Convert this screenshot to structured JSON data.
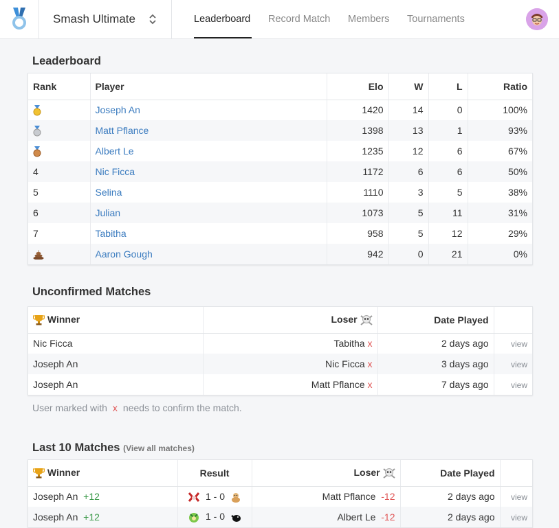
{
  "header": {
    "game": "Smash Ultimate",
    "tabs": [
      "Leaderboard",
      "Record Match",
      "Members",
      "Tournaments"
    ],
    "active_tab": "Leaderboard"
  },
  "leaderboard": {
    "title": "Leaderboard",
    "columns": [
      "Rank",
      "Player",
      "Elo",
      "W",
      "L",
      "Ratio"
    ],
    "rows": [
      {
        "rank": "gold-medal-icon",
        "player": "Joseph An",
        "elo": "1420",
        "w": "14",
        "l": "0",
        "ratio": "100%"
      },
      {
        "rank": "silver-medal-icon",
        "player": "Matt Pflance",
        "elo": "1398",
        "w": "13",
        "l": "1",
        "ratio": "93%"
      },
      {
        "rank": "bronze-medal-icon",
        "player": "Albert Le",
        "elo": "1235",
        "w": "12",
        "l": "6",
        "ratio": "67%"
      },
      {
        "rank": "4",
        "player": "Nic Ficca",
        "elo": "1172",
        "w": "6",
        "l": "6",
        "ratio": "50%"
      },
      {
        "rank": "5",
        "player": "Selina",
        "elo": "1110",
        "w": "3",
        "l": "5",
        "ratio": "38%"
      },
      {
        "rank": "6",
        "player": "Julian",
        "elo": "1073",
        "w": "5",
        "l": "11",
        "ratio": "31%"
      },
      {
        "rank": "7",
        "player": "Tabitha",
        "elo": "958",
        "w": "5",
        "l": "12",
        "ratio": "29%"
      },
      {
        "rank": "poop-icon",
        "player": "Aaron Gough",
        "elo": "942",
        "w": "0",
        "l": "21",
        "ratio": "0%"
      }
    ]
  },
  "unconfirmed": {
    "title": "Unconfirmed Matches",
    "columns": [
      "Winner",
      "Loser",
      "Date Played"
    ],
    "rows": [
      {
        "winner": "Nic Ficca",
        "loser": "Tabitha",
        "date": "2 days ago",
        "action": "view"
      },
      {
        "winner": "Joseph An",
        "loser": "Nic Ficca",
        "date": "3 days ago",
        "action": "view"
      },
      {
        "winner": "Joseph An",
        "loser": "Matt Pflance",
        "date": "7 days ago",
        "action": "view"
      }
    ],
    "note_before": "User marked with",
    "note_mark": "x",
    "note_after": "needs to confirm the match."
  },
  "last_matches": {
    "title": "Last 10 Matches",
    "view_all": "(View all matches)",
    "columns": [
      "Winner",
      "Result",
      "Loser",
      "Date Played"
    ],
    "rows": [
      {
        "winner": "Joseph An",
        "winner_delta": "+12",
        "result": "1 - 0",
        "loser": "Matt Pflance",
        "loser_delta": "-12",
        "date": "2 days ago",
        "action": "view"
      },
      {
        "winner": "Joseph An",
        "winner_delta": "+12",
        "result": "1 - 0",
        "loser": "Albert Le",
        "loser_delta": "-12",
        "date": "2 days ago",
        "action": "view"
      }
    ]
  },
  "icons": {
    "logo": "medal-logo-icon",
    "selector": "chevron-up-down-icon",
    "trophy": "trophy-icon",
    "skull": "skull-crossbones-icon"
  },
  "colors": {
    "link": "#3a7bbf",
    "win": "#3c9a4a",
    "loss": "#e05555"
  }
}
